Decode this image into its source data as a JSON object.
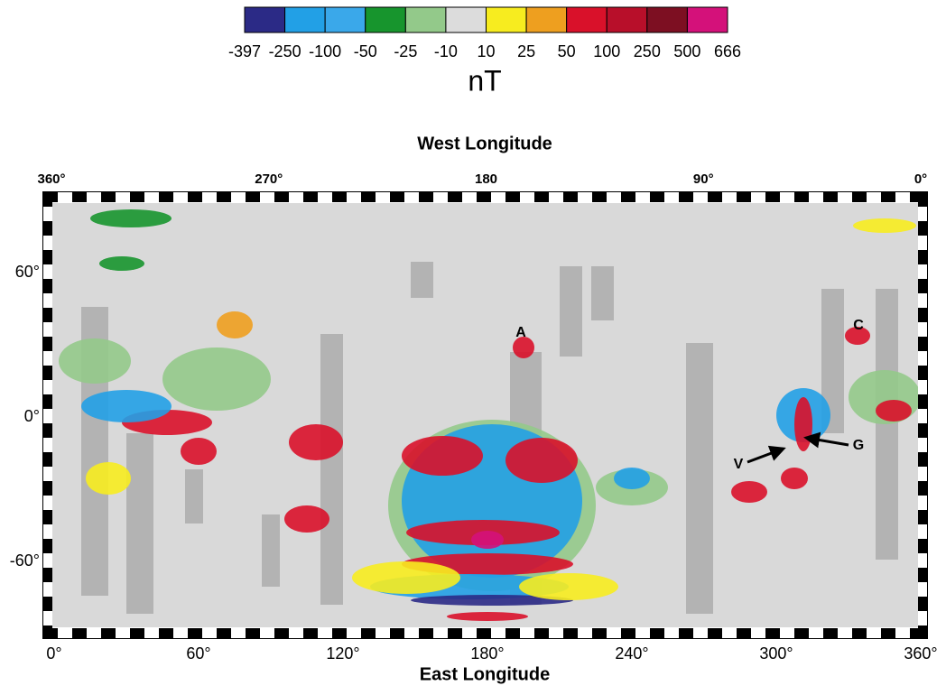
{
  "colorbar": {
    "colors": [
      "#2b2a86",
      "#22a0e6",
      "#3aa8ea",
      "#17952d",
      "#93c98a",
      "#dcdcdc",
      "#f7ec1f",
      "#ee9f1f",
      "#d9112a",
      "#b80f2a",
      "#7d0f22",
      "#d4117a"
    ],
    "labels": [
      "-397",
      "-250",
      "-100",
      "-50",
      "-25",
      "-10",
      "10",
      "25",
      "50",
      "100",
      "250",
      "500",
      "666"
    ],
    "unit": "nT"
  },
  "map": {
    "top_axis": {
      "title": "West Longitude",
      "ticks": [
        "360°",
        "270°",
        "180",
        "90°",
        "0°"
      ]
    },
    "left_axis": {
      "ticks": [
        "60°",
        "0°",
        "-60°"
      ]
    },
    "bottom_axis": {
      "title": "East Longitude",
      "ticks": [
        "0°",
        "60°",
        "120°",
        "180°",
        "240°",
        "300°",
        "360°"
      ]
    },
    "annotations": [
      "A",
      "C",
      "V",
      "G"
    ]
  }
}
